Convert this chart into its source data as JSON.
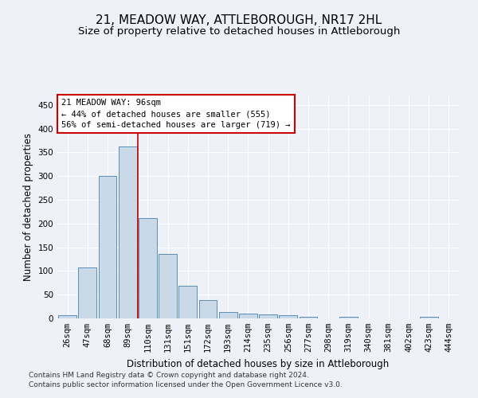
{
  "title": "21, MEADOW WAY, ATTLEBOROUGH, NR17 2HL",
  "subtitle": "Size of property relative to detached houses in Attleborough",
  "xlabel": "Distribution of detached houses by size in Attleborough",
  "ylabel": "Number of detached properties",
  "categories": [
    "26sqm",
    "47sqm",
    "68sqm",
    "89sqm",
    "110sqm",
    "131sqm",
    "151sqm",
    "172sqm",
    "193sqm",
    "214sqm",
    "235sqm",
    "256sqm",
    "277sqm",
    "298sqm",
    "319sqm",
    "340sqm",
    "381sqm",
    "402sqm",
    "423sqm",
    "444sqm"
  ],
  "values": [
    7,
    108,
    300,
    362,
    212,
    136,
    68,
    38,
    13,
    10,
    9,
    6,
    3,
    0,
    3,
    0,
    0,
    0,
    3,
    0
  ],
  "bar_color": "#c9d9e8",
  "bar_edge_color": "#5b8db8",
  "red_line_index": 3.5,
  "annotation_line1": "21 MEADOW WAY: 96sqm",
  "annotation_line2": "← 44% of detached houses are smaller (555)",
  "annotation_line3": "56% of semi-detached houses are larger (719) →",
  "annotation_box_color": "#ffffff",
  "annotation_box_edge_color": "#cc0000",
  "footer": "Contains HM Land Registry data © Crown copyright and database right 2024.\nContains public sector information licensed under the Open Government Licence v3.0.",
  "ylim": [
    0,
    470
  ],
  "yticks": [
    0,
    50,
    100,
    150,
    200,
    250,
    300,
    350,
    400,
    450
  ],
  "background_color": "#eef2f8",
  "grid_color": "#ffffff",
  "title_fontsize": 11,
  "subtitle_fontsize": 9.5,
  "xlabel_fontsize": 8.5,
  "ylabel_fontsize": 8.5,
  "tick_fontsize": 7.5,
  "annotation_fontsize": 7.5,
  "footer_fontsize": 6.5
}
